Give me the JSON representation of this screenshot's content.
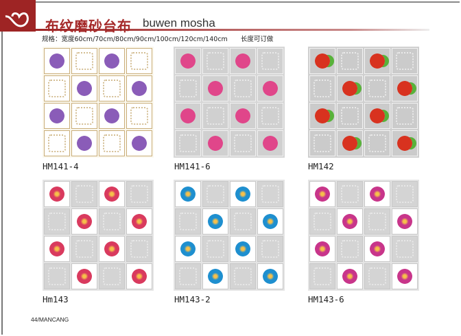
{
  "header": {
    "title_cn": "布纹磨砂台布",
    "title_en": "buwen mosha",
    "spec_label": "规格：宽度60cm/70cm/80cm/90cm/100cm/120cm/140cm",
    "spec_note": "长度可订做",
    "brand_color": "#9e2424"
  },
  "products": [
    {
      "code": "HM141-4",
      "bg": "#fbf8ee",
      "cell": "#ffffff",
      "ornament": "#c9ad78",
      "motif": "#8a5cb8",
      "motif_icon": "purple-rose"
    },
    {
      "code": "HM141-6",
      "bg": "#d6d6d6",
      "cell": "#d0d0d0",
      "ornament": "#f0f0f0",
      "motif": "#e0468a",
      "motif_icon": "pink-rose"
    },
    {
      "code": "HM142",
      "bg": "#cfcfcf",
      "cell": "#cbcbcb",
      "ornament": "#f2f2f2",
      "motif": "#d8321f",
      "motif_icon": "apple"
    },
    {
      "code": "Hm143",
      "bg": "#e4e4e4",
      "cell": "#ffffff",
      "ornament": "#c8c8c8",
      "motif": "#d93a5e",
      "motif_icon": "red-gerbera"
    },
    {
      "code": "HM143-2",
      "bg": "#e4e4e4",
      "cell": "#ffffff",
      "ornament": "#c8c8c8",
      "motif": "#1e8fcf",
      "motif_icon": "blue-gerbera"
    },
    {
      "code": "HM143-6",
      "bg": "#e4e4e4",
      "cell": "#ffffff",
      "ornament": "#c8c8c8",
      "motif": "#c8358a",
      "motif_icon": "magenta-gerbera"
    }
  ],
  "footer": {
    "page": "44/MANCANG"
  }
}
